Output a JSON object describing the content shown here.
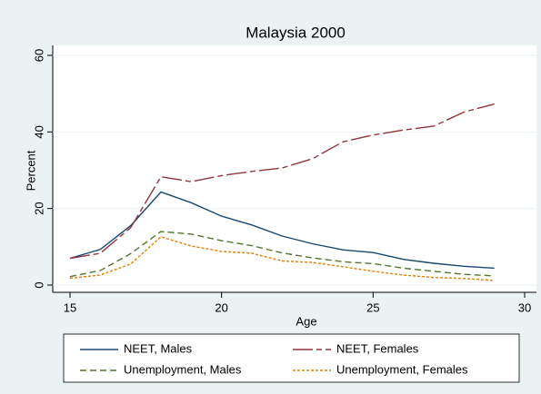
{
  "chart_data": {
    "type": "line",
    "title": "Malaysia 2000",
    "x_label": "Age",
    "y_label": "Percent",
    "x": [
      15,
      16,
      17,
      18,
      19,
      20,
      21,
      22,
      23,
      24,
      25,
      26,
      27,
      28,
      29
    ],
    "series": [
      {
        "name": "NEET, Males",
        "color": "#1a476f",
        "dash": "none",
        "values": [
          7,
          9.3,
          15.5,
          24.3,
          21.5,
          18,
          15.7,
          12.8,
          10.8,
          9.2,
          8.5,
          6.7,
          5.7,
          4.9,
          4.4
        ]
      },
      {
        "name": "NEET, Females",
        "color": "#90353b",
        "dash": "22 4 6 4",
        "values": [
          7,
          8.3,
          15,
          28.3,
          27,
          28.6,
          29.7,
          30.6,
          33,
          37.4,
          39.2,
          40.5,
          41.5,
          45.2,
          47.3
        ]
      },
      {
        "name": "Unemployment, Males",
        "color": "#55752f",
        "dash": "7 4",
        "values": [
          2.2,
          3.8,
          8.2,
          14,
          13.3,
          11.6,
          10.3,
          8.4,
          7.1,
          6.1,
          5.6,
          4.4,
          3.6,
          2.8,
          2.4
        ]
      },
      {
        "name": "Unemployment, Females",
        "color": "#e37e00",
        "dash": "3 2",
        "values": [
          1.8,
          2.6,
          5.5,
          12.6,
          10.2,
          8.8,
          8.3,
          6.3,
          5.9,
          4.8,
          3.6,
          2.6,
          2,
          1.7,
          1.2
        ]
      }
    ],
    "xlim": [
      15,
      30
    ],
    "xticks": [
      15,
      20,
      25,
      30
    ],
    "ylim": [
      0,
      60
    ],
    "yticks": [
      0,
      20,
      40,
      60
    ],
    "grid": true,
    "legend": "bottom"
  }
}
